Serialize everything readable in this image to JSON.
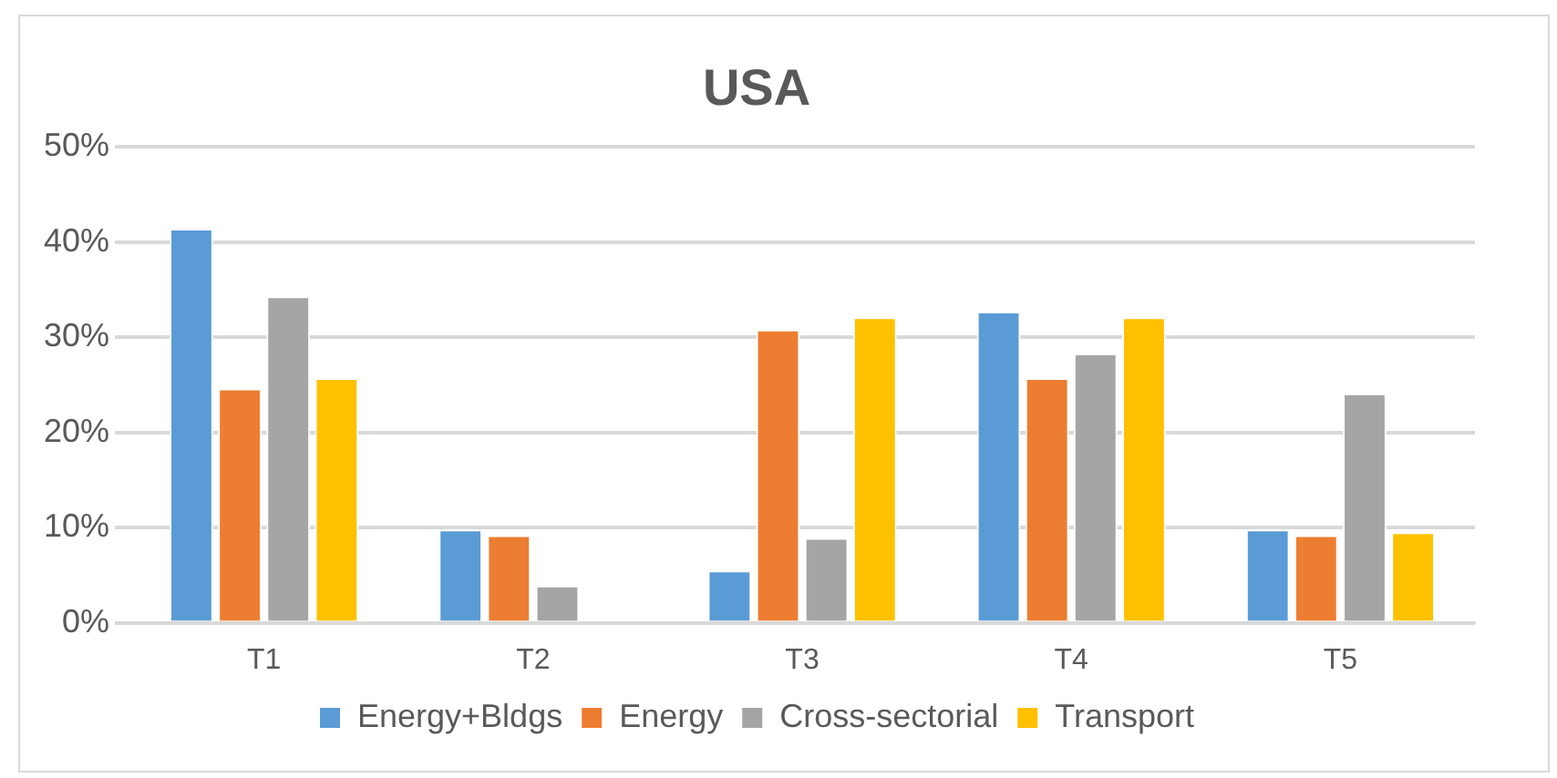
{
  "chart_data": {
    "type": "bar",
    "title": "USA",
    "categories": [
      "T1",
      "T2",
      "T3",
      "T4",
      "T5"
    ],
    "series": [
      {
        "name": "Energy+Bldgs",
        "color": "#5b9bd5",
        "values": [
          41.4,
          9.8,
          5.5,
          32.7,
          9.8
        ]
      },
      {
        "name": "Energy",
        "color": "#ed7d31",
        "values": [
          24.6,
          9.2,
          30.8,
          25.7,
          9.2
        ]
      },
      {
        "name": "Cross-sectorial",
        "color": "#a5a5a5",
        "values": [
          34.3,
          3.9,
          8.9,
          28.3,
          24.1
        ]
      },
      {
        "name": "Transport",
        "color": "#ffc000",
        "values": [
          25.7,
          0,
          32.1,
          32.1,
          9.5
        ]
      }
    ],
    "ylim": [
      0,
      50
    ],
    "yticks": [
      {
        "value": 0,
        "label": "0%"
      },
      {
        "value": 10,
        "label": "10%"
      },
      {
        "value": 20,
        "label": "20%"
      },
      {
        "value": 30,
        "label": "30%"
      },
      {
        "value": 40,
        "label": "40%"
      },
      {
        "value": 50,
        "label": "50%"
      }
    ],
    "grid": "y",
    "legend": "bottom"
  }
}
